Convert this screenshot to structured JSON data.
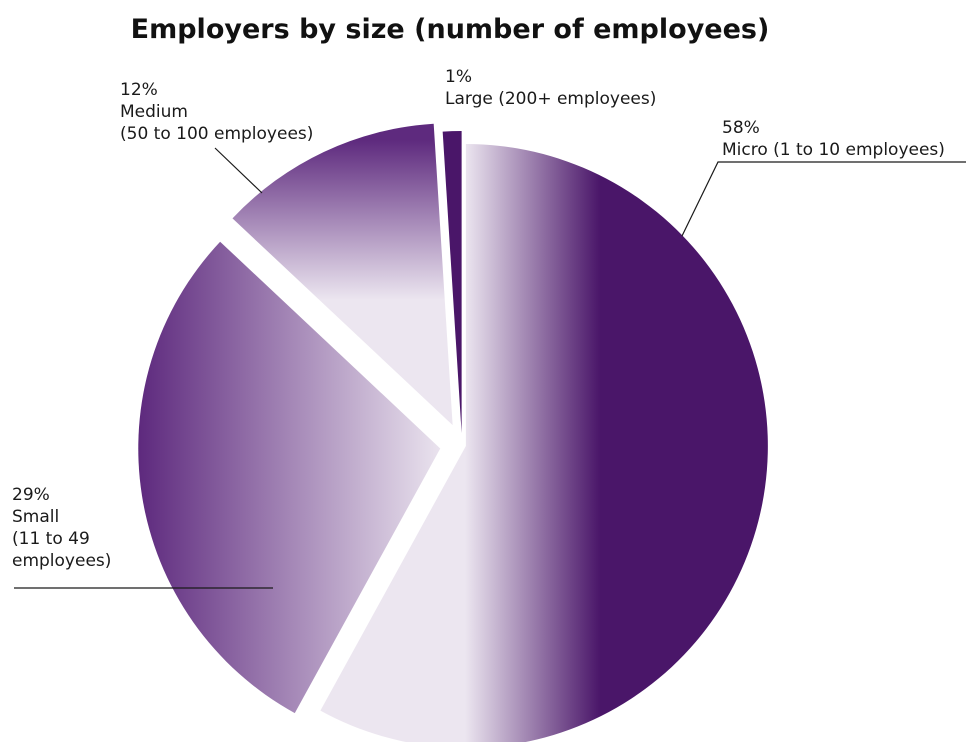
{
  "chart_data": {
    "type": "pie",
    "title": "Employers by size (number of employees)",
    "slices": [
      {
        "key": "micro",
        "value": 58,
        "percent_label": "58%",
        "label_lines": [
          "Micro (1 to 10 employees)"
        ]
      },
      {
        "key": "small",
        "value": 29,
        "percent_label": "29%",
        "label_lines": [
          "Small",
          "(11 to 49",
          "employees)"
        ]
      },
      {
        "key": "medium",
        "value": 12,
        "percent_label": "12%",
        "label_lines": [
          "Medium",
          "(50 to 100 employees)"
        ]
      },
      {
        "key": "large",
        "value": 1,
        "percent_label": "1%",
        "label_lines": [
          "Large (200+ employees)"
        ]
      }
    ],
    "slices_exploded": true,
    "legend": "none",
    "colors": {
      "dark": "#4a1669",
      "light": "#ece6f0"
    }
  }
}
